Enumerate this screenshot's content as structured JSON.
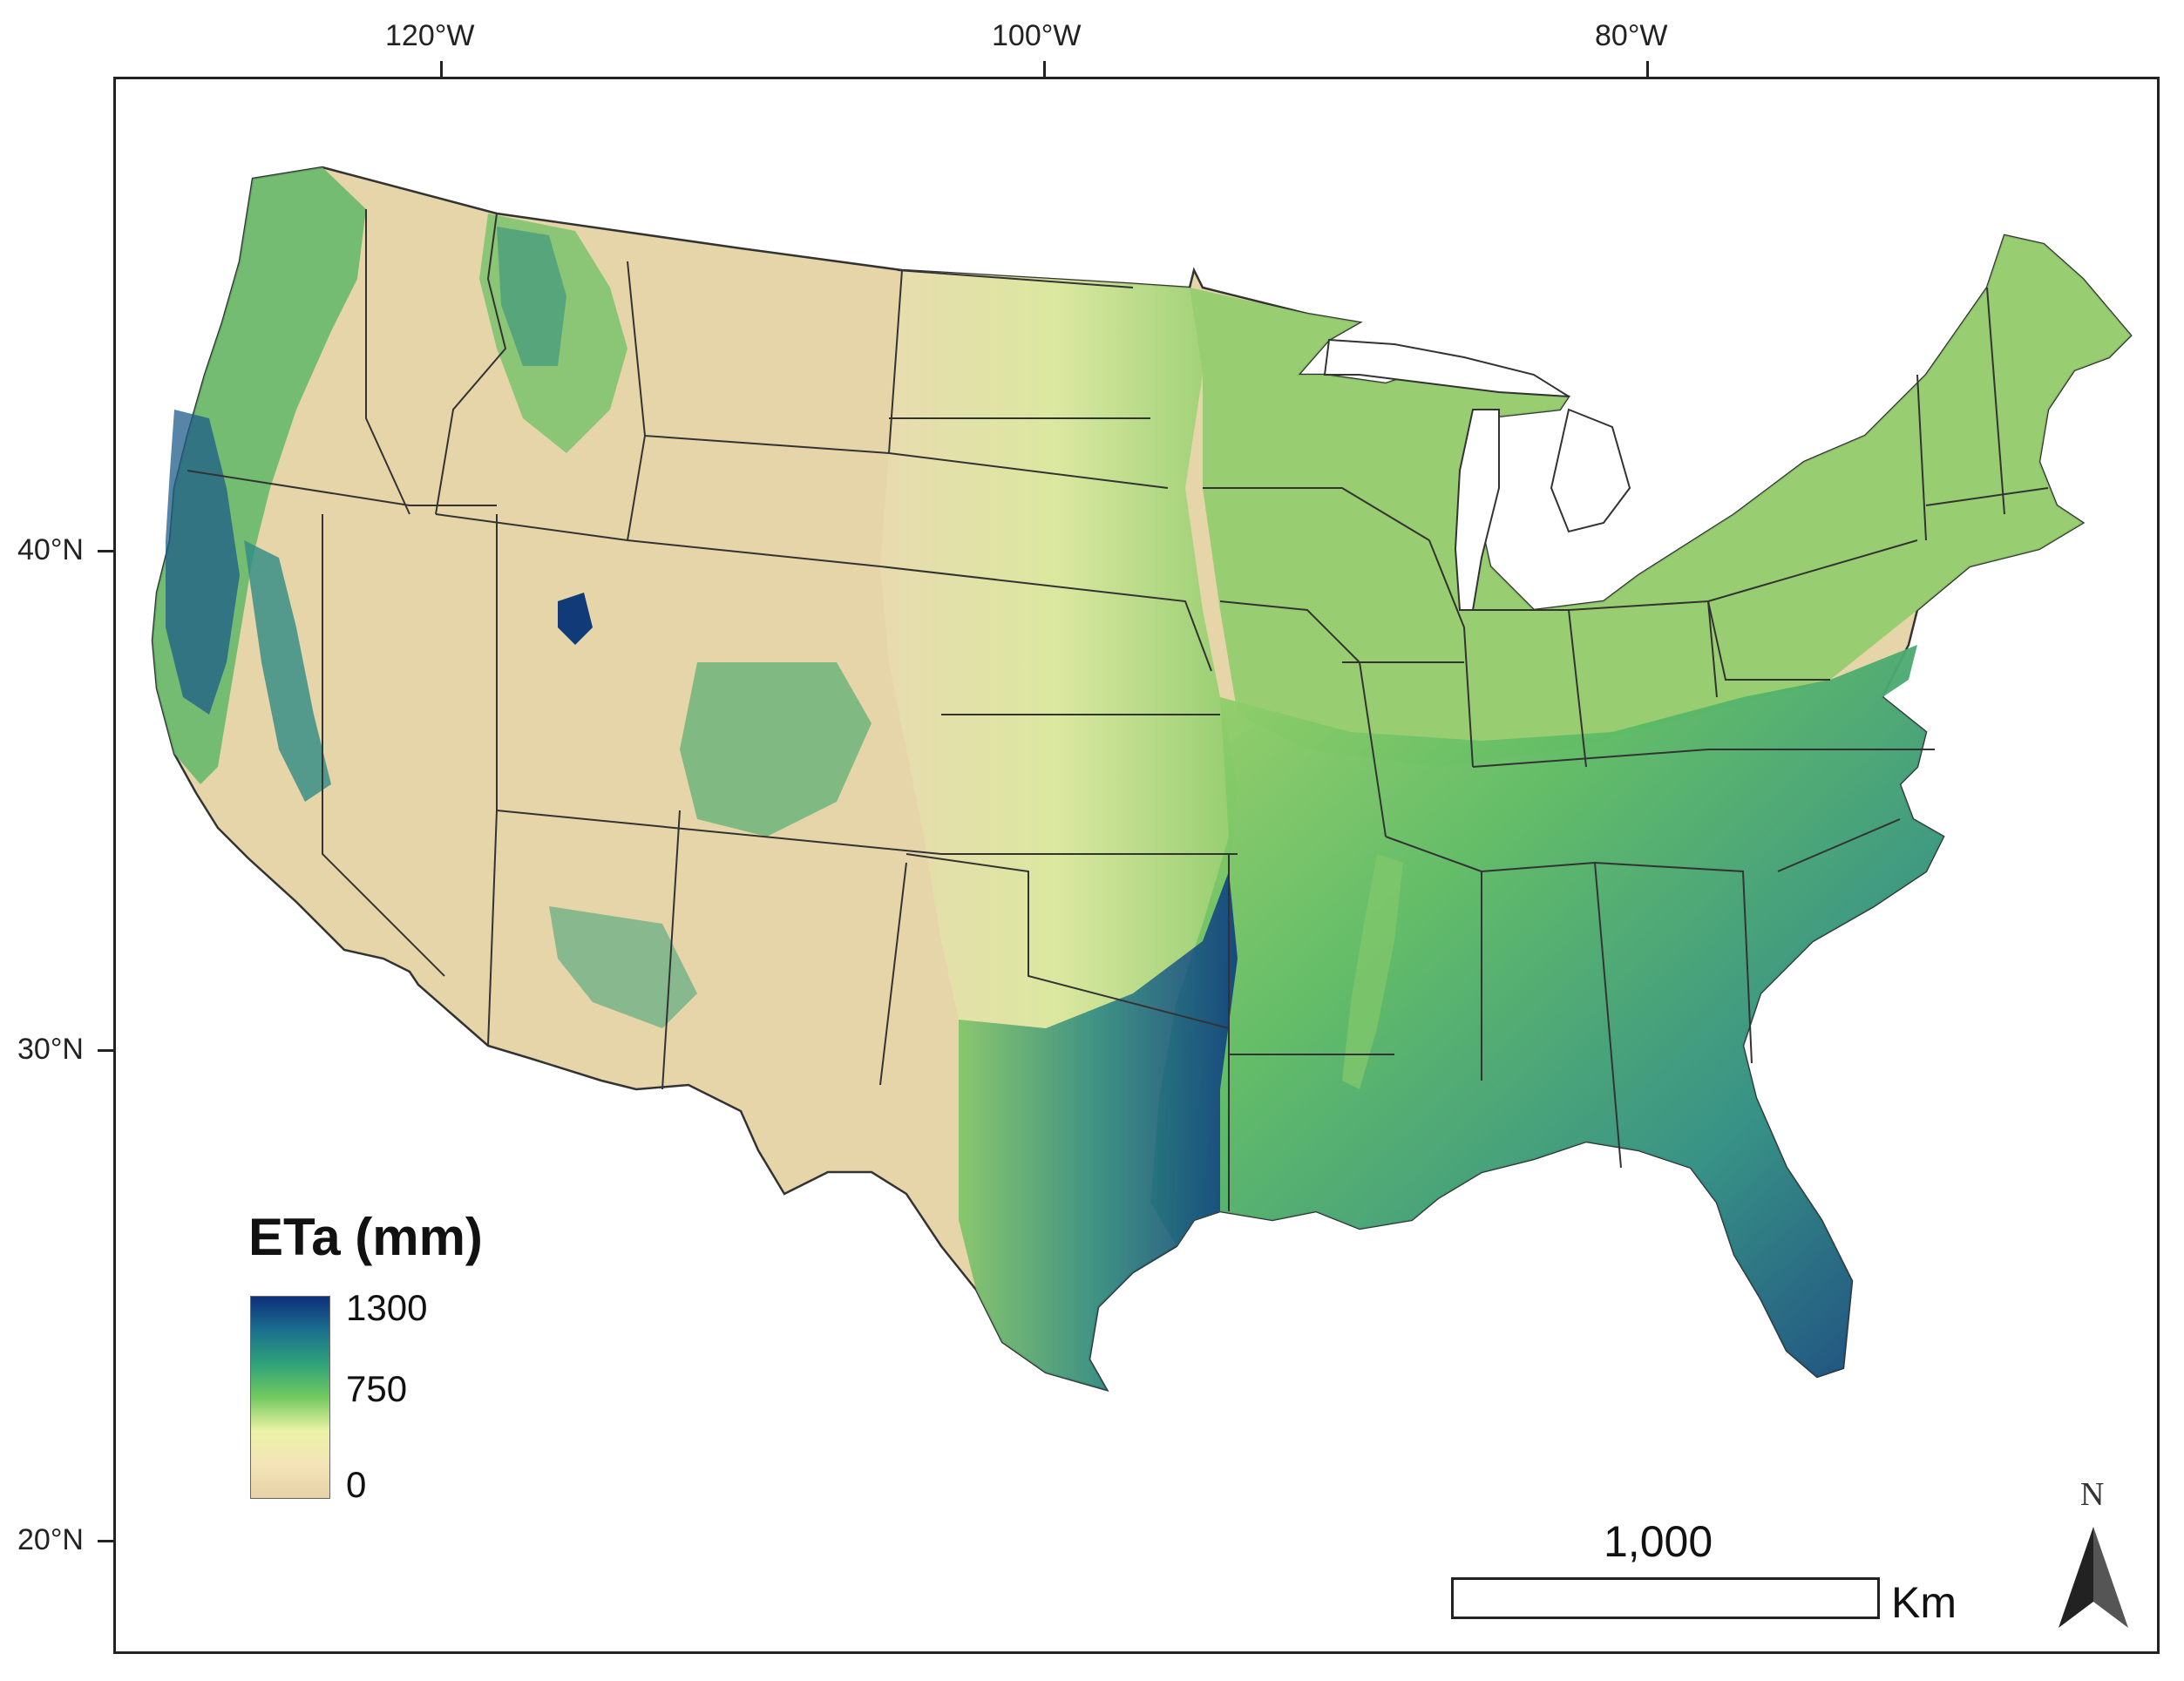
{
  "map": {
    "graticule": {
      "lon_labels": [
        "120°W",
        "100°W",
        "80°W"
      ],
      "lat_labels": [
        "40°N",
        "30°N",
        "20°N"
      ]
    },
    "legend": {
      "title": "ETa (mm)",
      "max_label": "1300",
      "mid_label": "750",
      "min_label": "0",
      "colors": [
        "#0d2f7a",
        "#1b6f8e",
        "#2fa27a",
        "#72c95f",
        "#ecf2a6",
        "#f3e4b8",
        "#e6d2a6"
      ]
    },
    "scale_bar": {
      "distance_label": "1,000",
      "unit_label": "Km"
    },
    "north_arrow": {
      "letter": "N"
    }
  }
}
